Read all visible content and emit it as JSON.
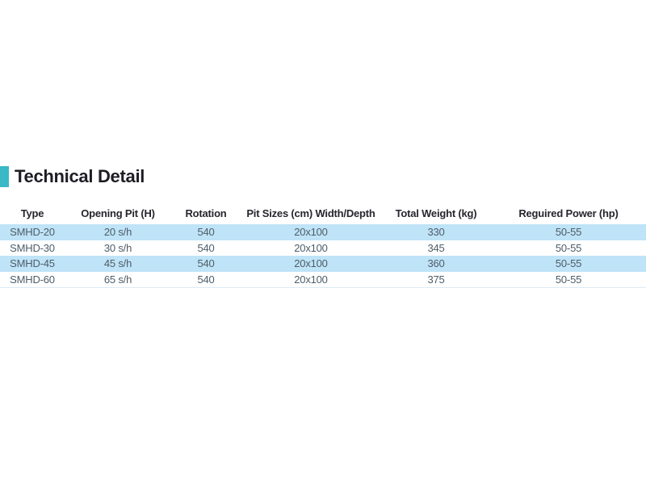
{
  "section": {
    "title": "Technical Detail",
    "accent_color": "#3ab8c6"
  },
  "table": {
    "headers": [
      "Type",
      "Opening Pit (H)",
      "Rotation",
      "Pit Sizes (cm) Width/Depth",
      "Total Weight (kg)",
      "Reguired Power (hp)"
    ],
    "rows": [
      [
        "SMHD-20",
        "20 s/h",
        "540",
        "20x100",
        "330",
        "50-55"
      ],
      [
        "SMHD-30",
        "30 s/h",
        "540",
        "20x100",
        "345",
        "50-55"
      ],
      [
        "SMHD-45",
        "45 s/h",
        "540",
        "20x100",
        "360",
        "50-55"
      ],
      [
        "SMHD-60",
        "65 s/h",
        "540",
        "20x100",
        "375",
        "50-55"
      ]
    ],
    "colors": {
      "stripe": "#bfe3f7",
      "header_text": "#26262e",
      "row_text": "#4e5d68",
      "bottom_border": "#ddeaf4"
    }
  }
}
